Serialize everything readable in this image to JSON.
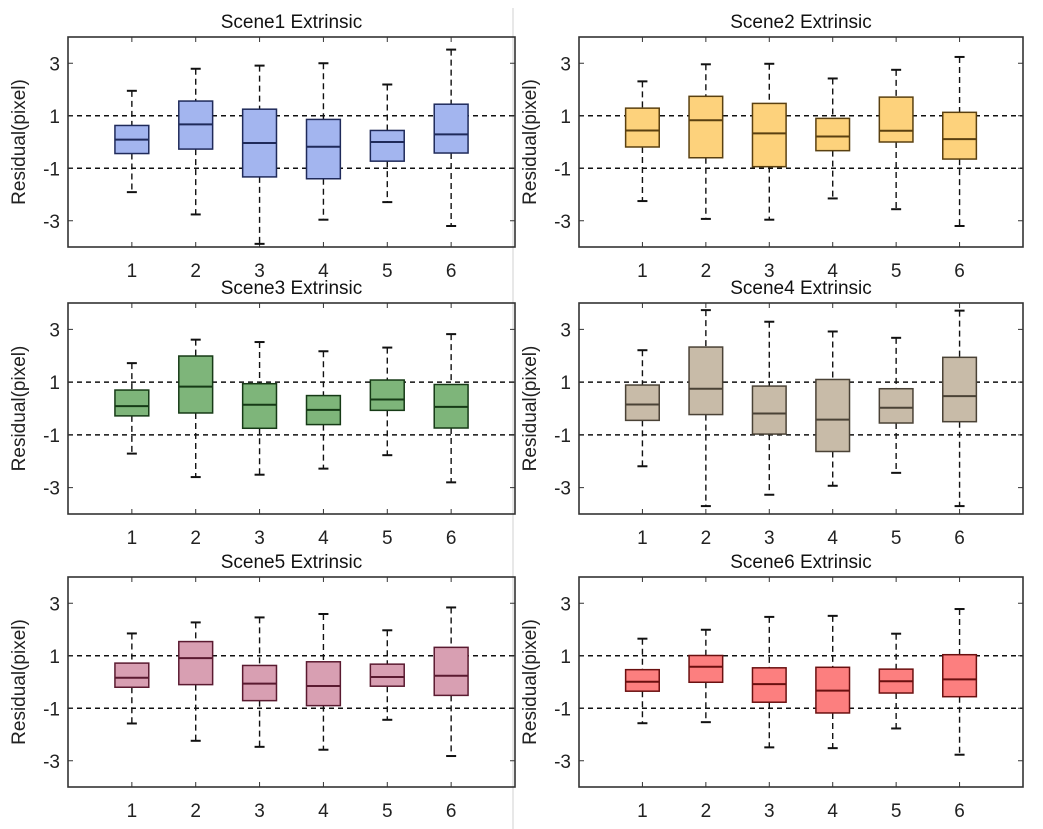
{
  "chart_data": [
    {
      "type": "box",
      "title": "Scene1 Extrinsic",
      "ylabel": "Residual(pixel)",
      "xlabel": "",
      "categories": [
        "1",
        "2",
        "3",
        "4",
        "5",
        "6"
      ],
      "yticks": [
        "3",
        "1",
        "-1",
        "-3"
      ],
      "ylim": [
        -4,
        4
      ],
      "xlim": [
        0,
        7
      ],
      "reference_lines": [
        1,
        -1
      ],
      "fill": "#a3b5ef",
      "edge": "#1f2a5a",
      "boxes": [
        {
          "whisker_low": -1.91,
          "q1": -0.44,
          "median": 0.09,
          "q3": 0.63,
          "whisker_high": 1.95
        },
        {
          "whisker_low": -2.76,
          "q1": -0.27,
          "median": 0.67,
          "q3": 1.56,
          "whisker_high": 2.79
        },
        {
          "whisker_low": -3.88,
          "q1": -1.33,
          "median": -0.04,
          "q3": 1.25,
          "whisker_high": 2.91
        },
        {
          "whisker_low": -2.96,
          "q1": -1.4,
          "median": -0.18,
          "q3": 0.86,
          "whisker_high": 3.0
        },
        {
          "whisker_low": -2.29,
          "q1": -0.73,
          "median": 0.0,
          "q3": 0.44,
          "whisker_high": 2.19
        },
        {
          "whisker_low": -3.2,
          "q1": -0.42,
          "median": 0.29,
          "q3": 1.44,
          "whisker_high": 3.52
        }
      ]
    },
    {
      "type": "box",
      "title": "Scene2 Extrinsic",
      "ylabel": "Residual(pixel)",
      "xlabel": "",
      "categories": [
        "1",
        "2",
        "3",
        "4",
        "5",
        "6"
      ],
      "yticks": [
        "3",
        "1",
        "-1",
        "-3"
      ],
      "ylim": [
        -4,
        4
      ],
      "xlim": [
        0,
        7
      ],
      "reference_lines": [
        1,
        -1
      ],
      "fill": "#fdd27c",
      "edge": "#5a4010",
      "boxes": [
        {
          "whisker_low": -2.25,
          "q1": -0.19,
          "median": 0.44,
          "q3": 1.29,
          "whisker_high": 2.31
        },
        {
          "whisker_low": -2.93,
          "q1": -0.6,
          "median": 0.83,
          "q3": 1.74,
          "whisker_high": 2.96
        },
        {
          "whisker_low": -2.96,
          "q1": -0.94,
          "median": 0.33,
          "q3": 1.47,
          "whisker_high": 2.98
        },
        {
          "whisker_low": -2.15,
          "q1": -0.33,
          "median": 0.21,
          "q3": 0.9,
          "whisker_high": 2.42
        },
        {
          "whisker_low": -2.56,
          "q1": 0.0,
          "median": 0.43,
          "q3": 1.71,
          "whisker_high": 2.75
        },
        {
          "whisker_low": -3.2,
          "q1": -0.65,
          "median": 0.11,
          "q3": 1.13,
          "whisker_high": 3.24
        }
      ]
    },
    {
      "type": "box",
      "title": "Scene3 Extrinsic",
      "ylabel": "Residual(pixel)",
      "xlabel": "",
      "categories": [
        "1",
        "2",
        "3",
        "4",
        "5",
        "6"
      ],
      "yticks": [
        "3",
        "1",
        "-1",
        "-3"
      ],
      "ylim": [
        -4,
        4
      ],
      "xlim": [
        0,
        7
      ],
      "reference_lines": [
        1,
        -1
      ],
      "fill": "#7eb57a",
      "edge": "#163a16",
      "boxes": [
        {
          "whisker_low": -1.71,
          "q1": -0.28,
          "median": 0.09,
          "q3": 0.7,
          "whisker_high": 1.72
        },
        {
          "whisker_low": -2.6,
          "q1": -0.17,
          "median": 0.83,
          "q3": 1.99,
          "whisker_high": 2.61
        },
        {
          "whisker_low": -2.51,
          "q1": -0.75,
          "median": 0.14,
          "q3": 0.94,
          "whisker_high": 2.52
        },
        {
          "whisker_low": -2.28,
          "q1": -0.61,
          "median": -0.05,
          "q3": 0.49,
          "whisker_high": 2.17
        },
        {
          "whisker_low": -1.77,
          "q1": -0.07,
          "median": 0.34,
          "q3": 1.08,
          "whisker_high": 2.31
        },
        {
          "whisker_low": -2.8,
          "q1": -0.74,
          "median": 0.06,
          "q3": 0.91,
          "whisker_high": 2.82
        }
      ]
    },
    {
      "type": "box",
      "title": "Scene4 Extrinsic",
      "ylabel": "Residual(pixel)",
      "xlabel": "",
      "categories": [
        "1",
        "2",
        "3",
        "4",
        "5",
        "6"
      ],
      "yticks": [
        "3",
        "1",
        "-1",
        "-3"
      ],
      "ylim": [
        -4,
        4
      ],
      "xlim": [
        0,
        7
      ],
      "reference_lines": [
        1,
        -1
      ],
      "fill": "#c8bba8",
      "edge": "#4a4236",
      "boxes": [
        {
          "whisker_low": -2.19,
          "q1": -0.45,
          "median": 0.15,
          "q3": 0.89,
          "whisker_high": 2.21
        },
        {
          "whisker_low": -3.7,
          "q1": -0.23,
          "median": 0.75,
          "q3": 2.33,
          "whisker_high": 3.73
        },
        {
          "whisker_low": -3.27,
          "q1": -0.97,
          "median": -0.19,
          "q3": 0.85,
          "whisker_high": 3.29
        },
        {
          "whisker_low": -2.93,
          "q1": -1.63,
          "median": -0.42,
          "q3": 1.1,
          "whisker_high": 2.92
        },
        {
          "whisker_low": -2.44,
          "q1": -0.55,
          "median": 0.03,
          "q3": 0.75,
          "whisker_high": 2.68
        },
        {
          "whisker_low": -3.7,
          "q1": -0.5,
          "median": 0.47,
          "q3": 1.94,
          "whisker_high": 3.71
        }
      ]
    },
    {
      "type": "box",
      "title": "Scene5 Extrinsic",
      "ylabel": "Residual(pixel)",
      "xlabel": "",
      "categories": [
        "1",
        "2",
        "3",
        "4",
        "5",
        "6"
      ],
      "yticks": [
        "3",
        "1",
        "-1",
        "-3"
      ],
      "ylim": [
        -4,
        4
      ],
      "xlim": [
        0,
        7
      ],
      "reference_lines": [
        1,
        -1
      ],
      "fill": "#d89fb2",
      "edge": "#5a1a30",
      "boxes": [
        {
          "whisker_low": -1.58,
          "q1": -0.2,
          "median": 0.16,
          "q3": 0.72,
          "whisker_high": 1.85
        },
        {
          "whisker_low": -2.24,
          "q1": -0.1,
          "median": 0.91,
          "q3": 1.54,
          "whisker_high": 2.27
        },
        {
          "whisker_low": -2.47,
          "q1": -0.71,
          "median": -0.06,
          "q3": 0.63,
          "whisker_high": 2.46
        },
        {
          "whisker_low": -2.58,
          "q1": -0.9,
          "median": -0.15,
          "q3": 0.77,
          "whisker_high": 2.59
        },
        {
          "whisker_low": -1.44,
          "q1": -0.16,
          "median": 0.19,
          "q3": 0.68,
          "whisker_high": 1.97
        },
        {
          "whisker_low": -2.82,
          "q1": -0.51,
          "median": 0.24,
          "q3": 1.32,
          "whisker_high": 2.84
        }
      ]
    },
    {
      "type": "box",
      "title": "Scene6 Extrinsic",
      "ylabel": "Residual(pixel)",
      "xlabel": "",
      "categories": [
        "1",
        "2",
        "3",
        "4",
        "5",
        "6"
      ],
      "yticks": [
        "3",
        "1",
        "-1",
        "-3"
      ],
      "ylim": [
        -4,
        4
      ],
      "xlim": [
        0,
        7
      ],
      "reference_lines": [
        1,
        -1
      ],
      "fill": "#fc7f7f",
      "edge": "#6a1010",
      "boxes": [
        {
          "whisker_low": -1.57,
          "q1": -0.35,
          "median": 0.01,
          "q3": 0.47,
          "whisker_high": 1.65
        },
        {
          "whisker_low": -1.53,
          "q1": -0.01,
          "median": 0.58,
          "q3": 1.01,
          "whisker_high": 1.99
        },
        {
          "whisker_low": -2.49,
          "q1": -0.77,
          "median": -0.08,
          "q3": 0.54,
          "whisker_high": 2.48
        },
        {
          "whisker_low": -2.52,
          "q1": -1.18,
          "median": -0.33,
          "q3": 0.56,
          "whisker_high": 2.52
        },
        {
          "whisker_low": -1.77,
          "q1": -0.42,
          "median": 0.03,
          "q3": 0.49,
          "whisker_high": 1.84
        },
        {
          "whisker_low": -2.77,
          "q1": -0.56,
          "median": 0.1,
          "q3": 1.04,
          "whisker_high": 2.78
        }
      ]
    }
  ]
}
